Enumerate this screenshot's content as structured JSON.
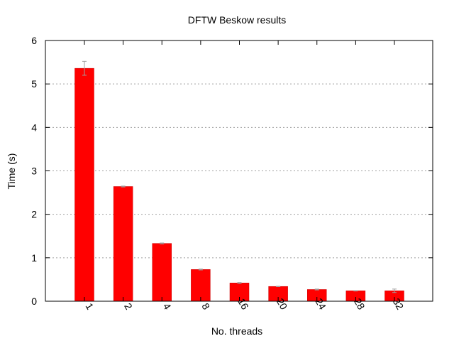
{
  "chart_data": {
    "type": "bar",
    "title": "DFTW Beskow results",
    "xlabel": "No. threads",
    "ylabel": "Time (s)",
    "categories": [
      "1",
      "2",
      "4",
      "8",
      "16",
      "20",
      "24",
      "28",
      "32"
    ],
    "values": [
      5.36,
      2.64,
      1.33,
      0.73,
      0.42,
      0.34,
      0.27,
      0.24,
      0.24
    ],
    "errors": [
      0.16,
      0.01,
      0.01,
      0.01,
      0.01,
      0.005,
      0.01,
      0.005,
      0.04
    ],
    "ylim": [
      0,
      6
    ],
    "yticks": [
      0,
      1,
      2,
      3,
      4,
      5,
      6
    ],
    "grid": true,
    "bar_color": "#ff0000",
    "error_color": "#a0a0a0",
    "grid_color": "#a0a0a0"
  }
}
